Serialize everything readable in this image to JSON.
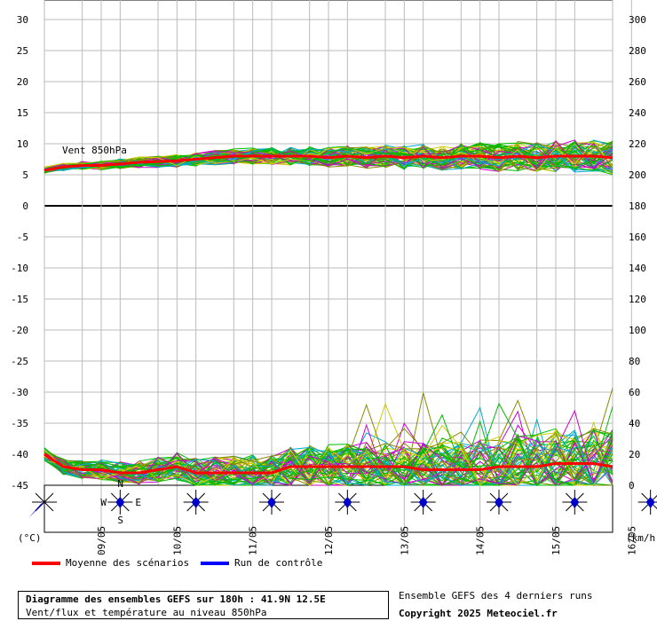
{
  "chart_data": {
    "type": "line",
    "title": "Diagramme des ensembles GEFS sur 180h : 41.9N 12.5E",
    "subtitle": "Vent/flux et température au niveau 850hPa",
    "wind_panel_label": "Vent 850hPa",
    "left_unit": "(°C)",
    "right_unit": "(km/h)",
    "left_ticks": [
      "30",
      "25",
      "20",
      "15",
      "10",
      "5",
      "0",
      "-5",
      "-10",
      "-15",
      "-20",
      "-25",
      "-30",
      "-35",
      "-40",
      "-45"
    ],
    "right_ticks": [
      "300",
      "280",
      "260",
      "240",
      "220",
      "200",
      "180",
      "160",
      "140",
      "120",
      "100",
      "80",
      "60",
      "40",
      "20",
      "0"
    ],
    "dates": [
      "09/05",
      "10/05",
      "11/05",
      "12/05",
      "13/05",
      "14/05",
      "15/05",
      "16/05"
    ],
    "x_range_hours": [
      0,
      180
    ],
    "wind_series": {
      "mean_hours": [
        0,
        6,
        12,
        18,
        24,
        30,
        36,
        42,
        48,
        54,
        60,
        66,
        72,
        78,
        84,
        90,
        96,
        102,
        108,
        114,
        120,
        126,
        132,
        138,
        144,
        150,
        156,
        162,
        168,
        174,
        180
      ],
      "mean_kmh": [
        203,
        205,
        206,
        206,
        207,
        208,
        208.5,
        209,
        210,
        211,
        212,
        212,
        212,
        212,
        212,
        211,
        212,
        211,
        212,
        211,
        212,
        211,
        212,
        212,
        211,
        212,
        211,
        212,
        212,
        212,
        211
      ]
    },
    "temperature_series": {
      "mean_hours": [
        0,
        6,
        12,
        18,
        24,
        30,
        36,
        42,
        48,
        54,
        60,
        66,
        72,
        78,
        84,
        90,
        96,
        102,
        108,
        114,
        120,
        126,
        132,
        138,
        144,
        150,
        156,
        162,
        168,
        174,
        180
      ],
      "mean_c": [
        -40,
        -42,
        -42.5,
        -42.5,
        -43,
        -43,
        -42.5,
        -42,
        -43,
        -43,
        -43,
        -43,
        -43,
        -42,
        -42,
        -42,
        -42,
        -42,
        -42,
        -42,
        -42.5,
        -42.5,
        -42.5,
        -42.5,
        -42,
        -42,
        -42,
        -41.5,
        -41.5,
        -41.5,
        -42
      ]
    },
    "legend": [
      {
        "name": "Moyenne des scénarios",
        "color": "#ff0000"
      },
      {
        "name": "Run de contrôle",
        "color": "#0000ff"
      }
    ],
    "member_colors": [
      "#00bb00",
      "#cc00cc",
      "#00aacc",
      "#cccc00",
      "#888800",
      "#0000ff"
    ]
  },
  "footer": {
    "ensemble_note": "Ensemble GEFS des 4 derniers runs",
    "copyright": "Copyright 2025 Meteociel.fr"
  }
}
